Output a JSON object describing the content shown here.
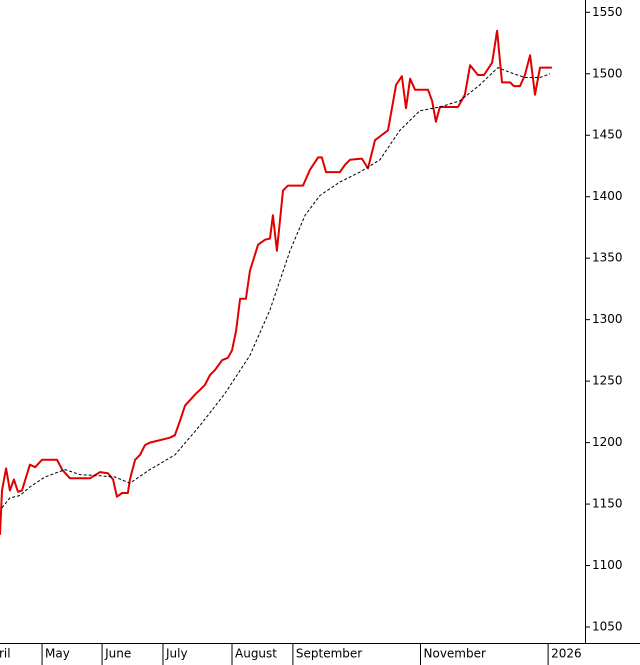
{
  "chart_data": {
    "type": "line",
    "series": [
      {
        "color": "#e00000",
        "dashed": false,
        "x": [
          0,
          0.7,
          2.1,
          3.4,
          4.8,
          6.2,
          7.6,
          10.3,
          12.1,
          14.5,
          17.2,
          19.7,
          21.4,
          24.1,
          31,
          34.5,
          37.2,
          39,
          40.3,
          42.1,
          44.1,
          44.8,
          46.6,
          48.3,
          50,
          51.7,
          55.2,
          58.6,
          60.3,
          62.1,
          63.8,
          67.2,
          69,
          70.7,
          72.4,
          74.1,
          76.6,
          78.6,
          80,
          81.4,
          82.8,
          84.8,
          86.2,
          89,
          91.4,
          93.1,
          94.1,
          95.5,
          97.6,
          99.3,
          104.5,
          106.9,
          109.7,
          111,
          112.4,
          117.2,
          119,
          120.7,
          124.8,
          126.9,
          129.3,
          131,
          133.8,
          136.6,
          138.6,
          140,
          141.4,
          143.1,
          147.6,
          149,
          150.3,
          151.7,
          153.8,
          157.9,
          160.3,
          162.1,
          164.8,
          166.9,
          169.7,
          171.4,
          173.1,
          175.9,
          177.2,
          179.3,
          181,
          182.8,
          184.5,
          186.2,
          190.3
        ],
        "values": [
          1125,
          1161,
          1179,
          1161,
          1170,
          1160,
          1161,
          1182,
          1180,
          1186,
          1186,
          1186,
          1178,
          1171,
          1171,
          1176,
          1175,
          1170,
          1156,
          1159,
          1159,
          1170,
          1186,
          1190,
          1198,
          1200,
          1202,
          1204,
          1206,
          1218,
          1230,
          1239,
          1243,
          1247,
          1255,
          1259,
          1267,
          1269,
          1275,
          1291,
          1317,
          1317,
          1340,
          1361,
          1365,
          1366,
          1385,
          1356,
          1405,
          1409,
          1409,
          1422,
          1432,
          1432,
          1420,
          1420,
          1426,
          1430,
          1431,
          1423,
          1446,
          1449,
          1454,
          1491,
          1498,
          1472,
          1496,
          1487,
          1487,
          1478,
          1461,
          1473,
          1473,
          1473,
          1483,
          1507,
          1499,
          1499,
          1509,
          1535,
          1493,
          1493,
          1490,
          1490,
          1499,
          1515,
          1483,
          1505,
          1505
        ]
      },
      {
        "color": "#000000",
        "dashed": true,
        "x": [
          0.7,
          3.4,
          6.9,
          10.3,
          15.5,
          22.4,
          27.6,
          34.5,
          39.7,
          44.8,
          51.7,
          60.3,
          69,
          77.6,
          86.2,
          93.1,
          100,
          105.2,
          110.3,
          117.2,
          124.1,
          131,
          137.9,
          144.8,
          151.7,
          158.6,
          165.5,
          171.7,
          175.9,
          181,
          186.2,
          189.7
        ],
        "values": [
          1147,
          1155,
          1157,
          1164,
          1172,
          1178,
          1174,
          1173,
          1172,
          1167,
          1178,
          1190,
          1214,
          1240,
          1271,
          1308,
          1356,
          1385,
          1401,
          1412,
          1420,
          1430,
          1454,
          1470,
          1473,
          1478,
          1491,
          1505,
          1501,
          1497,
          1497,
          1500
        ]
      }
    ],
    "xlim": [
      0,
      200
    ],
    "xticks": [
      {
        "value": -1.4,
        "label": "ril"
      },
      {
        "value": 14.5,
        "label": "May"
      },
      {
        "value": 35.2,
        "label": "June"
      },
      {
        "value": 56.2,
        "label": "July"
      },
      {
        "value": 80,
        "label": "August"
      },
      {
        "value": 101,
        "label": "September"
      },
      {
        "value": 145,
        "label": "November"
      },
      {
        "value": 189,
        "label": "2026"
      }
    ],
    "ylim": [
      1037,
      1560
    ],
    "yticks": [
      1050,
      1100,
      1150,
      1200,
      1250,
      1300,
      1350,
      1400,
      1450,
      1500,
      1550
    ],
    "grid": false
  }
}
